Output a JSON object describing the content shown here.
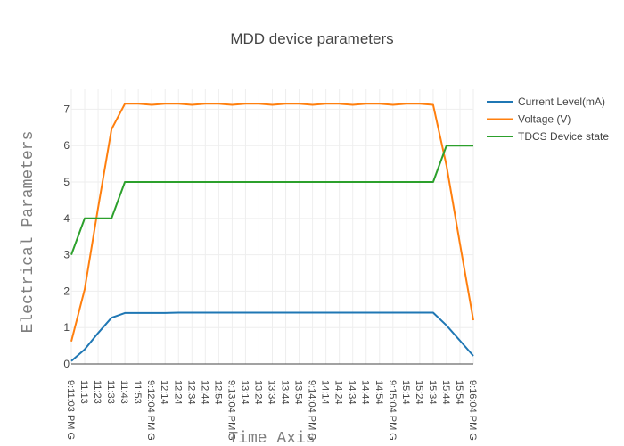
{
  "chart_data": {
    "type": "line",
    "title": "MDD device parameters",
    "xlabel": "Time Axis",
    "ylabel": "Electrical Parameters",
    "categories": [
      "9:11:03 PM G",
      "11:13",
      "11:23",
      "11:33",
      "11:43",
      "11:53",
      "9:12:04 PM G",
      "12:14",
      "12:24",
      "12:34",
      "12:44",
      "12:54",
      "9:13:04 PM G",
      "13:14",
      "13:24",
      "13:34",
      "13:44",
      "13:54",
      "9:14:04 PM G",
      "14:14",
      "14:24",
      "14:34",
      "14:44",
      "14:54",
      "9:15:04 PM G",
      "15:14",
      "15:24",
      "15:34",
      "15:44",
      "15:54",
      "9:16:04 PM G"
    ],
    "yticks": [
      0,
      1,
      2,
      3,
      4,
      5,
      6,
      7
    ],
    "ylim": [
      0,
      7.55
    ],
    "grid": true,
    "legend_position": "top-right",
    "series": [
      {
        "name": "Current Level(mA)",
        "color": "#1f77b4",
        "values": [
          0.08,
          0.4,
          0.85,
          1.27,
          1.4,
          1.4,
          1.4,
          1.4,
          1.41,
          1.41,
          1.41,
          1.41,
          1.41,
          1.41,
          1.41,
          1.41,
          1.41,
          1.41,
          1.41,
          1.41,
          1.41,
          1.41,
          1.41,
          1.41,
          1.41,
          1.41,
          1.41,
          1.41,
          1.06,
          0.64,
          0.22
        ]
      },
      {
        "name": "Voltage (V)",
        "color": "#ff7f0e",
        "values": [
          0.62,
          2.05,
          4.3,
          6.45,
          7.15,
          7.15,
          7.12,
          7.15,
          7.15,
          7.12,
          7.15,
          7.15,
          7.12,
          7.15,
          7.15,
          7.12,
          7.15,
          7.15,
          7.12,
          7.15,
          7.15,
          7.12,
          7.15,
          7.15,
          7.12,
          7.15,
          7.15,
          7.12,
          5.45,
          3.3,
          1.2
        ]
      },
      {
        "name": "TDCS Device state",
        "color": "#2ca02c",
        "values": [
          3,
          4,
          4,
          4,
          5,
          5,
          5,
          5,
          5,
          5,
          5,
          5,
          5,
          5,
          5,
          5,
          5,
          5,
          5,
          5,
          5,
          5,
          5,
          5,
          5,
          5,
          5,
          5,
          6,
          6,
          6
        ]
      }
    ]
  }
}
